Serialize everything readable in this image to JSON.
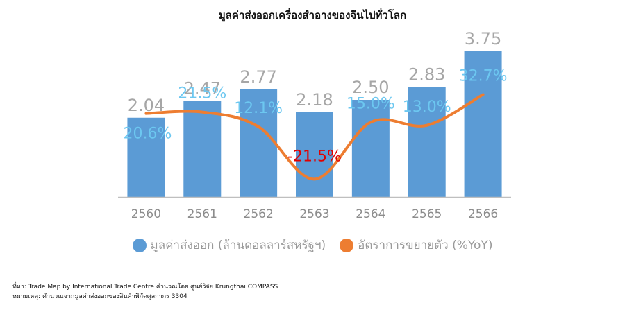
{
  "title": "มูลค่าส่งออกเครื่องสำอางของจีนไปทั่วโลก",
  "legend": {
    "bar_label": "มูลค่าส่งออก (ล้านดอลลาร์สหรัฐฯ)",
    "line_label": "อัตราการขยายตัว (%YoY)"
  },
  "colors": {
    "bar": "#5b9bd5",
    "line": "#ed7d31",
    "bar_value_text": "#a6a6a6",
    "growth_positive_text": "#6cc7f0",
    "growth_negative_text": "#e00000",
    "axis_text": "#8c8c8c"
  },
  "chart_data": {
    "type": "bar",
    "categories": [
      "2560",
      "2561",
      "2562",
      "2563",
      "2564",
      "2565",
      "2566"
    ],
    "series": [
      {
        "values": [
          2.04,
          2.47,
          2.77,
          2.18,
          2.5,
          2.83,
          3.75
        ]
      },
      {
        "type": "line",
        "values": [
          20.6,
          21.5,
          12.1,
          -21.5,
          15.0,
          13.0,
          32.7
        ]
      }
    ],
    "bar_labels": [
      "2.04",
      "2.47",
      "2.77",
      "2.18",
      "2.50",
      "2.83",
      "3.75"
    ],
    "growth_labels": [
      "20.6%",
      "21.5%",
      "12.1%",
      "-21.5%",
      "15.0%",
      "13.0%",
      "32.7%"
    ],
    "ylim": [
      0,
      4
    ],
    "y2lim": [
      -40,
      40
    ],
    "grid": false,
    "legend_position": "bottom"
  },
  "footnotes": {
    "source": "ที่มา: Trade Map by International Trade Centre คำนวณโดย ศูนย์วิจัย Krungthai COMPASS",
    "note": "หมายเหตุ: คำนวณจากมูลค่าส่งออกของสินค้าพิกัดศุลกากร 3304"
  }
}
